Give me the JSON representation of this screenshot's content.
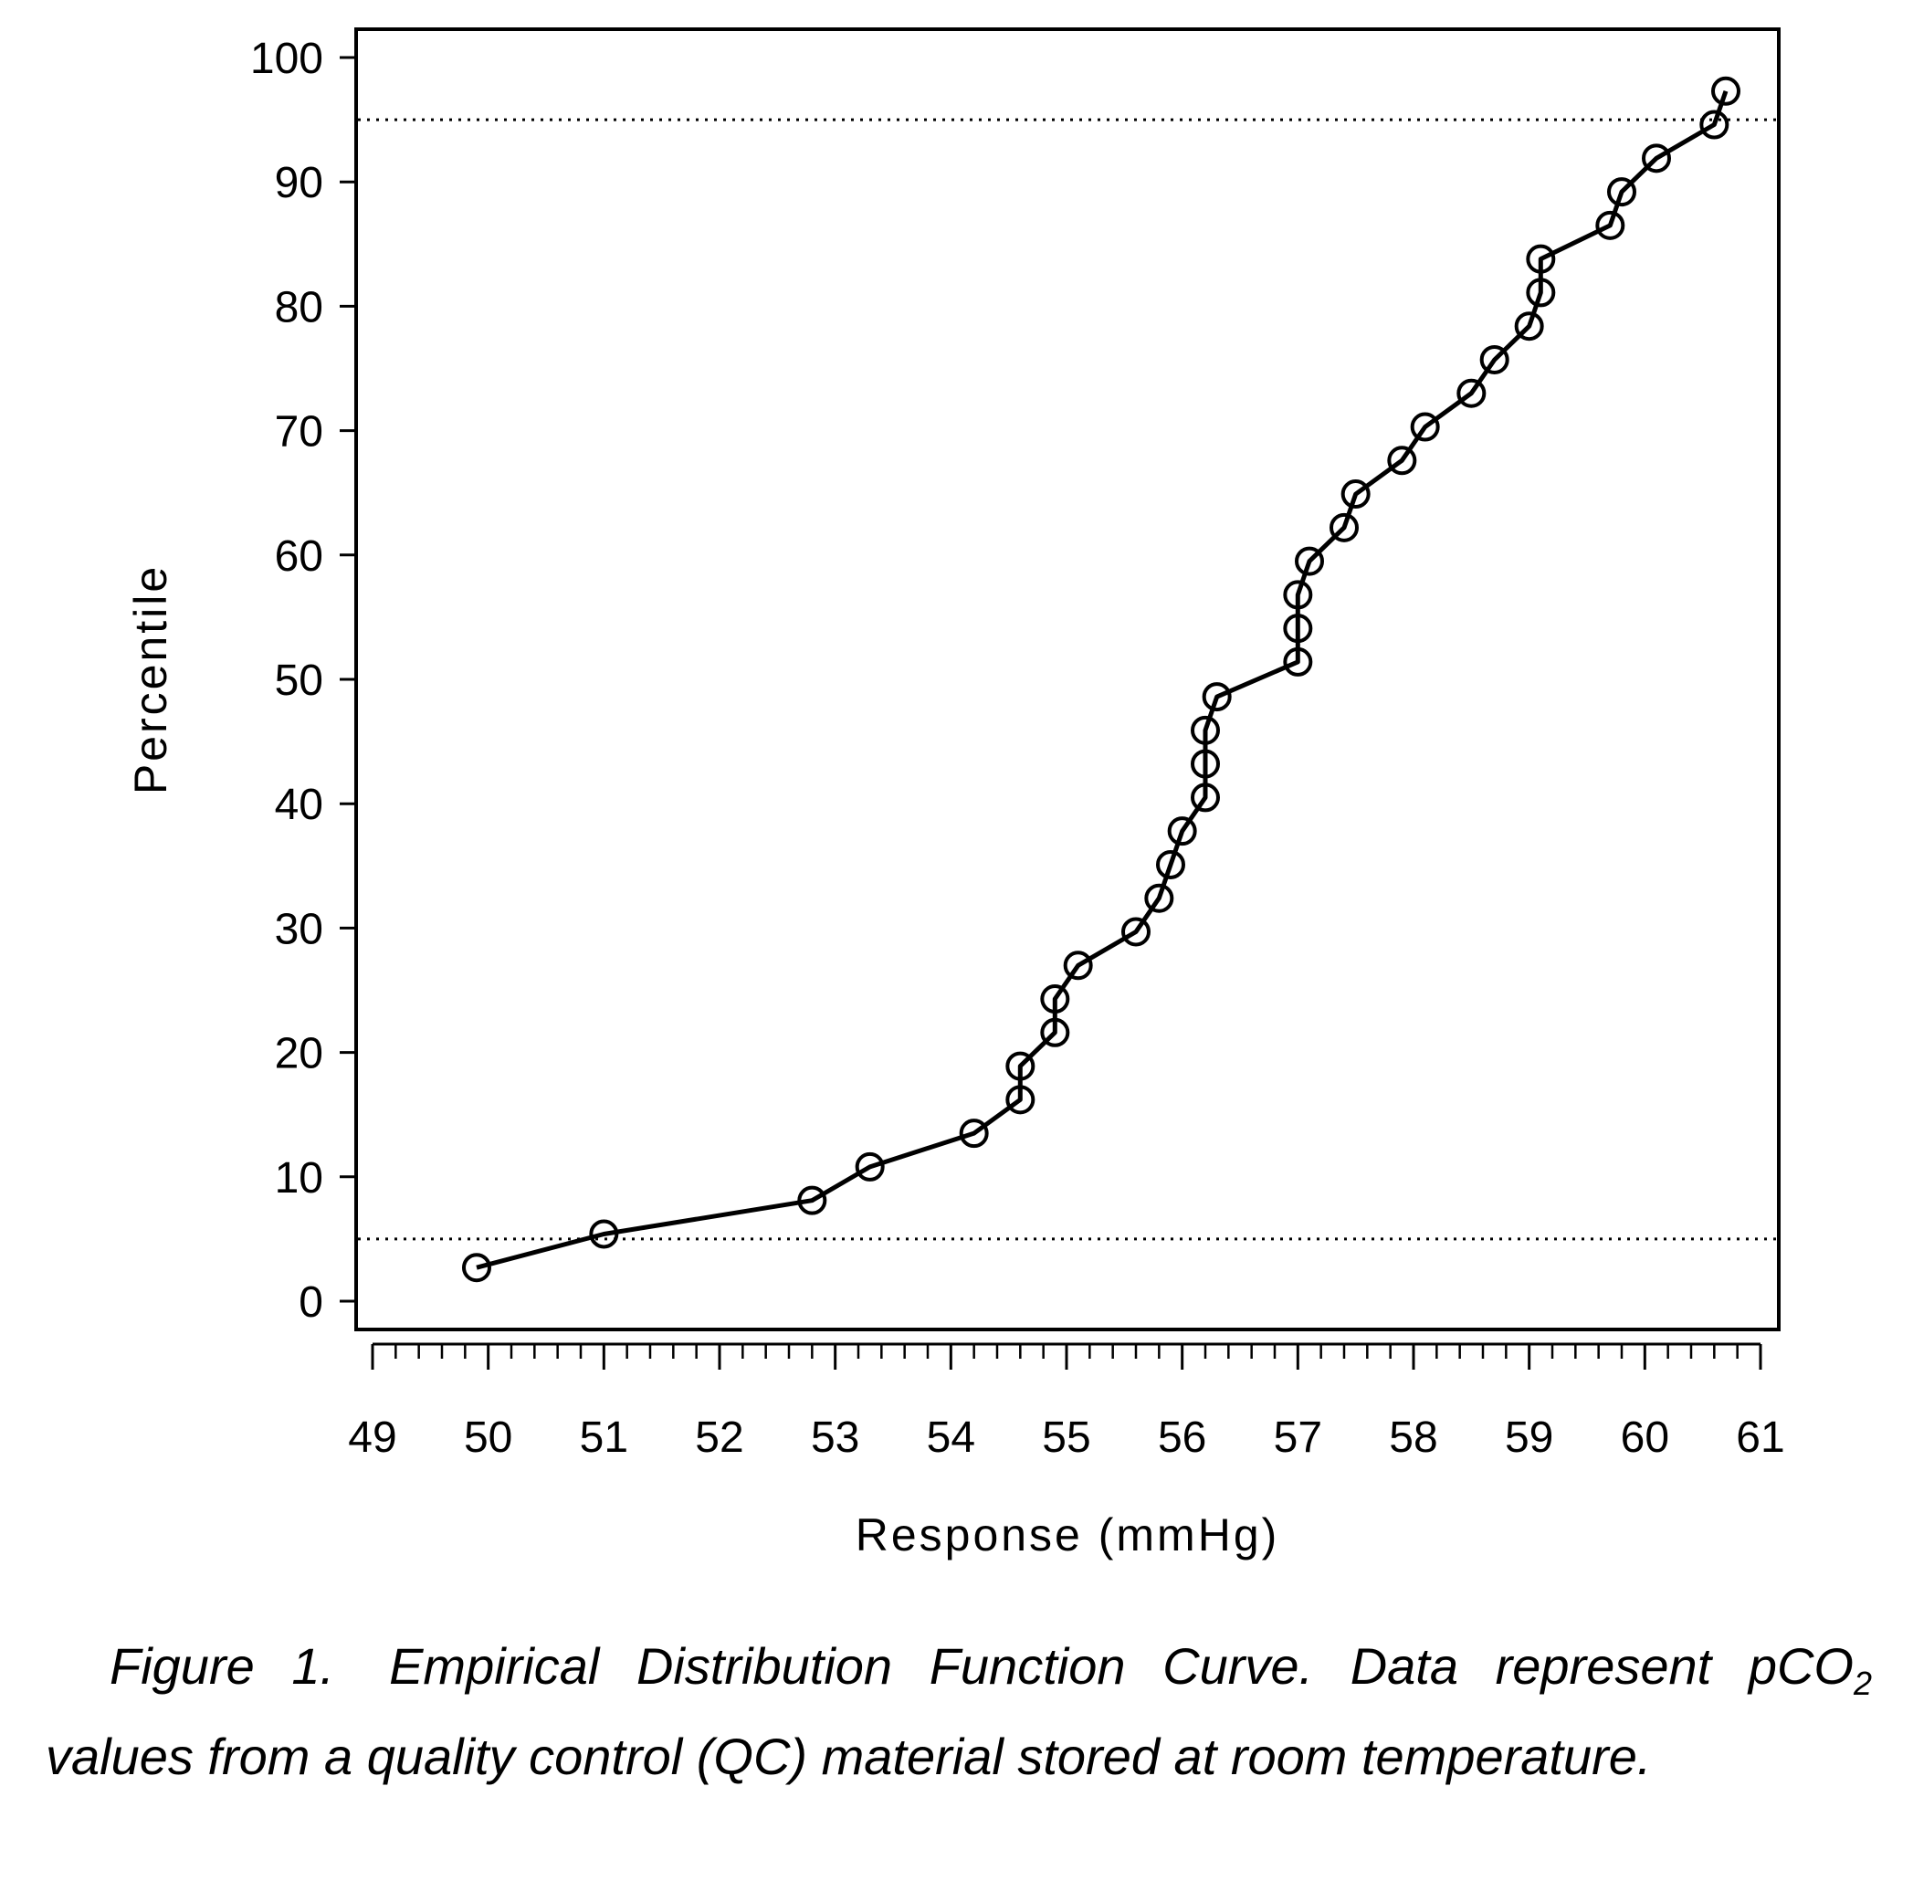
{
  "chart_data": {
    "type": "line",
    "xlabel": "Response (mmHg)",
    "ylabel": "Percentile",
    "xlim": [
      49,
      61
    ],
    "ylim": [
      0,
      100
    ],
    "x_ticks": [
      "49",
      "50",
      "51",
      "52",
      "53",
      "54",
      "55",
      "56",
      "57",
      "58",
      "59",
      "60",
      "61"
    ],
    "y_ticks": [
      "0",
      "10",
      "20",
      "30",
      "40",
      "50",
      "60",
      "70",
      "80",
      "90",
      "100"
    ],
    "reference_lines": [
      {
        "y": 5,
        "style": "dotted"
      },
      {
        "y": 95,
        "style": "dotted"
      }
    ],
    "grid": false,
    "series": [
      {
        "marker": "open-circle",
        "x": [
          49.9,
          51.0,
          52.8,
          53.3,
          54.2,
          54.6,
          54.6,
          54.9,
          54.9,
          55.1,
          55.6,
          55.8,
          55.9,
          56.0,
          56.2,
          56.2,
          56.2,
          56.3,
          57.0,
          57.0,
          57.0,
          57.1,
          57.4,
          57.5,
          57.9,
          58.1,
          58.5,
          58.7,
          59.0,
          59.1,
          59.1,
          59.7,
          59.8,
          60.1,
          60.6,
          60.7
        ],
        "y": [
          2.7,
          5.4,
          8.1,
          10.8,
          13.5,
          16.2,
          18.9,
          21.6,
          24.3,
          27.0,
          29.7,
          32.4,
          35.1,
          37.8,
          40.5,
          43.2,
          45.9,
          48.6,
          51.4,
          54.1,
          56.8,
          59.5,
          62.2,
          64.9,
          67.6,
          70.3,
          73.0,
          75.7,
          78.4,
          81.1,
          83.8,
          86.5,
          89.2,
          91.9,
          94.6,
          97.3
        ]
      }
    ]
  },
  "caption": {
    "label": "Figure 1.",
    "text_before_sub": "Empirical Distribution Function Curve.  Data represent pCO",
    "subscript": "2",
    "text_after_sub": " values from a quality control (QC) material stored at room temperature."
  }
}
